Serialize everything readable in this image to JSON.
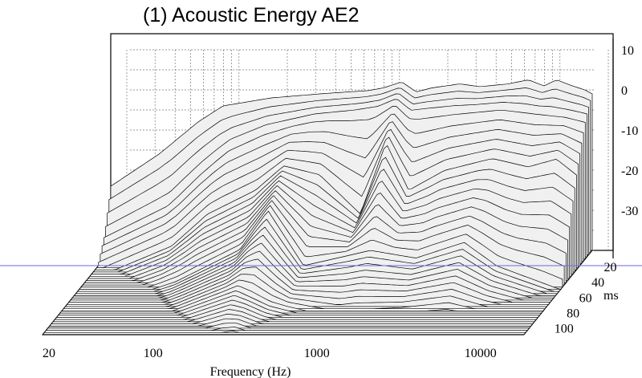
{
  "chart_data": {
    "type": "waterfall",
    "title": "(1) Acoustic Energy AE2",
    "xlabel": "Frequency (Hz)",
    "zlabel": "ms",
    "x_scale": "log",
    "xlim": [
      20,
      20000
    ],
    "x_ticks": [
      "20",
      "100",
      "1000",
      "10000"
    ],
    "ylim": [
      -40,
      10
    ],
    "y_ticks": [
      "10",
      "0",
      "-10",
      "-20",
      "-30"
    ],
    "time_ticks": [
      "20",
      "40",
      "60",
      "80",
      "100"
    ],
    "time_range_ms": [
      0,
      110
    ],
    "grid": true,
    "reference_line_color": "#6a6ae0",
    "fill_color": "#f0f0f0",
    "series": [
      {
        "time_ms": 0,
        "points": [
          [
            20,
            -24
          ],
          [
            40,
            -16
          ],
          [
            70,
            -8
          ],
          [
            100,
            -4
          ],
          [
            200,
            -2
          ],
          [
            400,
            -1
          ],
          [
            600,
            -0.5
          ],
          [
            800,
            -0.2
          ],
          [
            1000,
            0.5
          ],
          [
            1300,
            2
          ],
          [
            1600,
            -0.5
          ],
          [
            2000,
            0.5
          ],
          [
            3000,
            1.5
          ],
          [
            4000,
            0.8
          ],
          [
            6000,
            1.5
          ],
          [
            8000,
            2.5
          ],
          [
            10000,
            1
          ],
          [
            12000,
            2.5
          ],
          [
            15000,
            1
          ],
          [
            18000,
            0
          ],
          [
            20000,
            -1
          ]
        ]
      },
      {
        "time_ms": 10,
        "points": [
          [
            20,
            -34
          ],
          [
            50,
            -26
          ],
          [
            80,
            -18
          ],
          [
            120,
            -12
          ],
          [
            200,
            -8
          ],
          [
            400,
            -5
          ],
          [
            700,
            -4
          ],
          [
            1000,
            -3
          ],
          [
            1300,
            -1
          ],
          [
            1600,
            -4
          ],
          [
            3000,
            -3
          ],
          [
            6000,
            -2
          ],
          [
            10000,
            -3
          ],
          [
            15000,
            -4
          ],
          [
            20000,
            -5
          ]
        ]
      },
      {
        "time_ms": 25,
        "points": [
          [
            20,
            -42
          ],
          [
            60,
            -34
          ],
          [
            100,
            -26
          ],
          [
            200,
            -20
          ],
          [
            300,
            -14
          ],
          [
            500,
            -16
          ],
          [
            900,
            -26
          ],
          [
            1300,
            -8
          ],
          [
            1800,
            -20
          ],
          [
            3000,
            -15
          ],
          [
            6000,
            -12
          ],
          [
            10000,
            -14
          ],
          [
            15000,
            -12
          ],
          [
            20000,
            -16
          ]
        ]
      },
      {
        "time_ms": 50,
        "points": [
          [
            20,
            -46
          ],
          [
            80,
            -38
          ],
          [
            200,
            -30
          ],
          [
            300,
            -20
          ],
          [
            500,
            -34
          ],
          [
            1300,
            -30
          ],
          [
            2500,
            -32
          ],
          [
            5000,
            -28
          ],
          [
            8000,
            -34
          ],
          [
            20000,
            -40
          ]
        ]
      },
      {
        "time_ms": 80,
        "points": [
          [
            20,
            -48
          ],
          [
            100,
            -40
          ],
          [
            250,
            -34
          ],
          [
            400,
            -38
          ],
          [
            1000,
            -42
          ],
          [
            5000,
            -40
          ],
          [
            20000,
            -44
          ]
        ]
      },
      {
        "time_ms": 110,
        "points": [
          [
            20,
            -50
          ],
          [
            100,
            -44
          ],
          [
            300,
            -40
          ],
          [
            1000,
            -46
          ],
          [
            20000,
            -48
          ]
        ]
      }
    ]
  }
}
